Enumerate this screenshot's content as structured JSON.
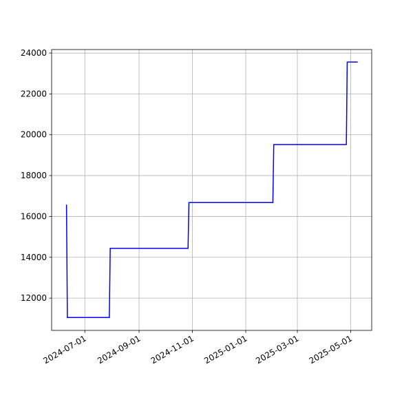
{
  "chart_data": {
    "type": "line",
    "x": [
      "2024-06-10",
      "2024-06-11",
      "2024-07-29",
      "2024-07-30",
      "2024-10-27",
      "2024-10-28",
      "2025-02-01",
      "2025-02-02",
      "2025-04-26",
      "2025-04-27",
      "2025-05-09"
    ],
    "values": [
      16580,
      11050,
      11050,
      14440,
      14440,
      16680,
      16680,
      19520,
      19520,
      23560,
      23560
    ],
    "color": "#0000ff",
    "xlim": [
      "2024-05-24",
      "2025-05-25"
    ],
    "xticks": [
      "2024-07-01",
      "2024-09-01",
      "2024-11-01",
      "2025-01-01",
      "2025-03-01",
      "2025-05-01"
    ],
    "ylim": [
      10420,
      24170
    ],
    "yticks": [
      12000,
      14000,
      16000,
      18000,
      20000,
      22000,
      24000
    ],
    "grid": true
  }
}
